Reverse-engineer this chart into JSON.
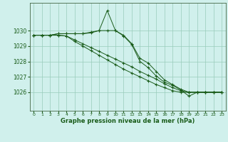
{
  "background_color": "#d0f0ec",
  "grid_color": "#99ccbb",
  "line_color": "#1a5c1a",
  "xlabel": "Graphe pression niveau de la mer (hPa)",
  "ylim": [
    1024.8,
    1031.8
  ],
  "yticks": [
    1026,
    1027,
    1028,
    1029,
    1030
  ],
  "xlim": [
    -0.5,
    23.5
  ],
  "xticks": [
    0,
    1,
    2,
    3,
    4,
    5,
    6,
    7,
    8,
    9,
    10,
    11,
    12,
    13,
    14,
    15,
    16,
    17,
    18,
    19,
    20,
    21,
    22,
    23
  ],
  "series": [
    [
      1029.7,
      1029.7,
      1029.7,
      1029.8,
      1029.8,
      1029.8,
      1029.8,
      1029.85,
      1030.0,
      1031.3,
      1030.0,
      1029.65,
      1029.1,
      1028.0,
      1027.6,
      1027.05,
      1026.65,
      1026.45,
      1026.15,
      1025.75,
      1026.0,
      1026.0,
      1026.0,
      1026.0
    ],
    [
      1029.7,
      1029.7,
      1029.7,
      1029.8,
      1029.8,
      1029.8,
      1029.8,
      1029.9,
      1030.0,
      1030.0,
      1030.0,
      1029.7,
      1029.15,
      1028.2,
      1027.9,
      1027.35,
      1026.8,
      1026.5,
      1026.2,
      1026.0,
      1026.0,
      1026.0,
      1026.0,
      1026.0
    ],
    [
      1029.7,
      1029.7,
      1029.7,
      1029.7,
      1029.65,
      1029.4,
      1029.15,
      1028.9,
      1028.65,
      1028.4,
      1028.15,
      1027.9,
      1027.65,
      1027.35,
      1027.1,
      1026.85,
      1026.55,
      1026.3,
      1026.1,
      1026.0,
      1026.0,
      1026.0,
      1026.0,
      1026.0
    ],
    [
      1029.7,
      1029.7,
      1029.7,
      1029.7,
      1029.65,
      1029.3,
      1029.0,
      1028.7,
      1028.4,
      1028.1,
      1027.8,
      1027.5,
      1027.25,
      1027.0,
      1026.75,
      1026.5,
      1026.3,
      1026.1,
      1026.0,
      1026.0,
      1026.0,
      1026.0,
      1026.0,
      1026.0
    ]
  ]
}
